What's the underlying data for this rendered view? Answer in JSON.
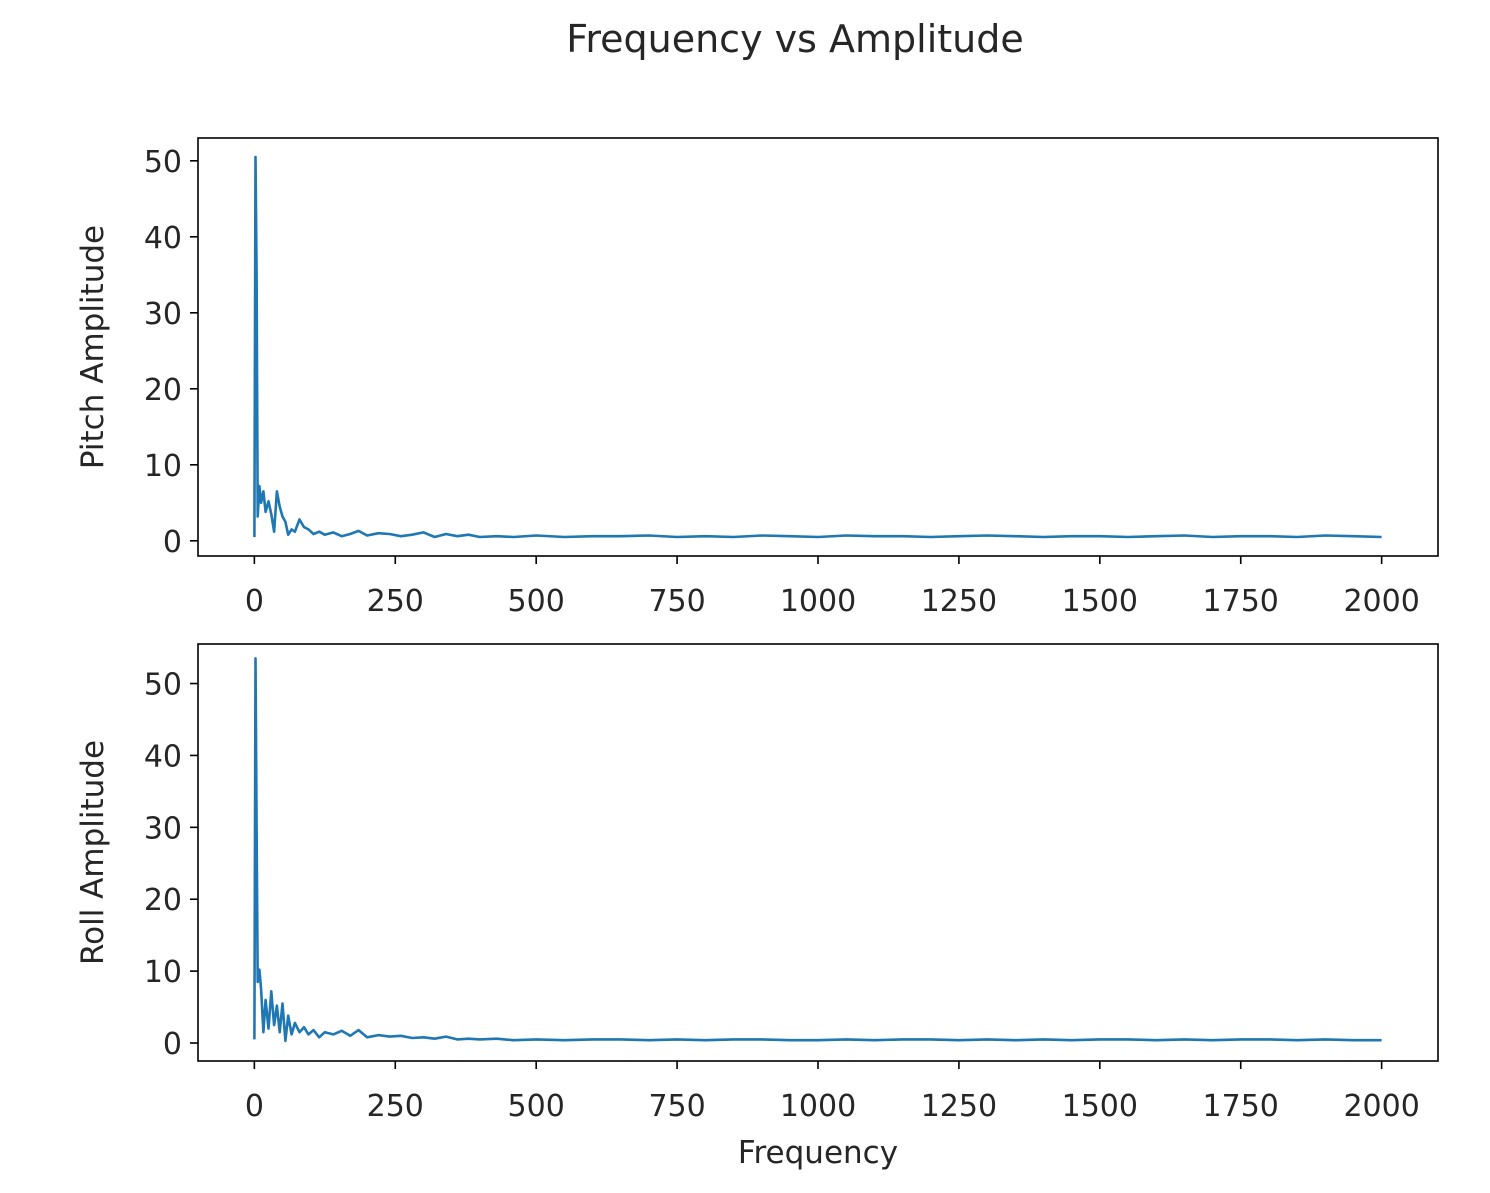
{
  "figure": {
    "title": "Frequency vs Amplitude",
    "line_color": "#1f77b4",
    "axes_color": "#000000",
    "background": "#ffffff"
  },
  "chart_data": [
    {
      "type": "line",
      "title": "",
      "xlabel": "",
      "ylabel": "Pitch Amplitude",
      "xlim": [
        -100,
        2100
      ],
      "ylim": [
        -2,
        53
      ],
      "xticks": [
        0,
        250,
        500,
        750,
        1000,
        1250,
        1500,
        1750,
        2000
      ],
      "yticks": [
        0,
        10,
        20,
        30,
        40,
        50
      ],
      "grid": false,
      "series": [
        {
          "x": [
            0,
            2,
            4,
            6,
            9,
            12,
            16,
            20,
            25,
            30,
            35,
            40,
            45,
            50,
            55,
            60,
            66,
            72,
            80,
            88,
            96,
            105,
            115,
            125,
            140,
            155,
            170,
            185,
            200,
            220,
            240,
            260,
            280,
            300,
            320,
            340,
            360,
            380,
            400,
            430,
            460,
            500,
            550,
            600,
            650,
            700,
            750,
            800,
            850,
            900,
            950,
            1000,
            1050,
            1100,
            1150,
            1200,
            1250,
            1300,
            1350,
            1400,
            1450,
            1500,
            1550,
            1600,
            1650,
            1700,
            1750,
            1800,
            1850,
            1900,
            1950,
            2000
          ],
          "y": [
            0.5,
            50.5,
            35,
            3.2,
            7.2,
            5,
            6.5,
            3.8,
            5.2,
            3.5,
            1.2,
            6.5,
            4.5,
            3.2,
            2.5,
            0.8,
            1.5,
            1.2,
            2.8,
            1.8,
            1.5,
            0.9,
            1.2,
            0.8,
            1.1,
            0.6,
            0.9,
            1.3,
            0.7,
            1.0,
            0.9,
            0.6,
            0.8,
            1.1,
            0.5,
            0.9,
            0.6,
            0.8,
            0.5,
            0.6,
            0.5,
            0.7,
            0.5,
            0.6,
            0.6,
            0.7,
            0.5,
            0.6,
            0.5,
            0.7,
            0.6,
            0.5,
            0.7,
            0.6,
            0.6,
            0.5,
            0.6,
            0.7,
            0.6,
            0.5,
            0.6,
            0.6,
            0.5,
            0.6,
            0.7,
            0.5,
            0.6,
            0.6,
            0.5,
            0.7,
            0.6,
            0.5
          ]
        }
      ]
    },
    {
      "type": "line",
      "title": "",
      "xlabel": "Frequency",
      "ylabel": "Roll Amplitude",
      "xlim": [
        -100,
        2100
      ],
      "ylim": [
        -2.5,
        55.5
      ],
      "xticks": [
        0,
        250,
        500,
        750,
        1000,
        1250,
        1500,
        1750,
        2000
      ],
      "yticks": [
        0,
        10,
        20,
        30,
        40,
        50
      ],
      "grid": false,
      "series": [
        {
          "x": [
            0,
            2,
            4,
            6,
            9,
            12,
            16,
            20,
            25,
            30,
            35,
            40,
            45,
            50,
            55,
            60,
            66,
            72,
            80,
            88,
            96,
            105,
            115,
            125,
            140,
            155,
            170,
            185,
            200,
            220,
            240,
            260,
            280,
            300,
            320,
            340,
            360,
            380,
            400,
            430,
            460,
            500,
            550,
            600,
            650,
            700,
            750,
            800,
            850,
            900,
            950,
            1000,
            1050,
            1100,
            1150,
            1200,
            1250,
            1300,
            1350,
            1400,
            1450,
            1500,
            1550,
            1600,
            1650,
            1700,
            1750,
            1800,
            1850,
            1900,
            1950,
            2000
          ],
          "y": [
            0.5,
            53.5,
            30,
            8.5,
            10.2,
            7.5,
            1.5,
            6.0,
            2.0,
            7.2,
            2.5,
            5.2,
            1.5,
            5.5,
            0.3,
            3.8,
            1.2,
            2.8,
            1.5,
            2.2,
            1.2,
            1.8,
            0.8,
            1.5,
            1.2,
            1.7,
            1.0,
            1.8,
            0.8,
            1.1,
            0.9,
            1.0,
            0.7,
            0.8,
            0.6,
            0.9,
            0.5,
            0.6,
            0.5,
            0.6,
            0.4,
            0.5,
            0.4,
            0.5,
            0.5,
            0.4,
            0.5,
            0.4,
            0.5,
            0.5,
            0.4,
            0.4,
            0.5,
            0.4,
            0.5,
            0.5,
            0.4,
            0.5,
            0.4,
            0.5,
            0.4,
            0.5,
            0.5,
            0.4,
            0.5,
            0.4,
            0.5,
            0.5,
            0.4,
            0.5,
            0.4,
            0.4
          ]
        }
      ]
    }
  ]
}
